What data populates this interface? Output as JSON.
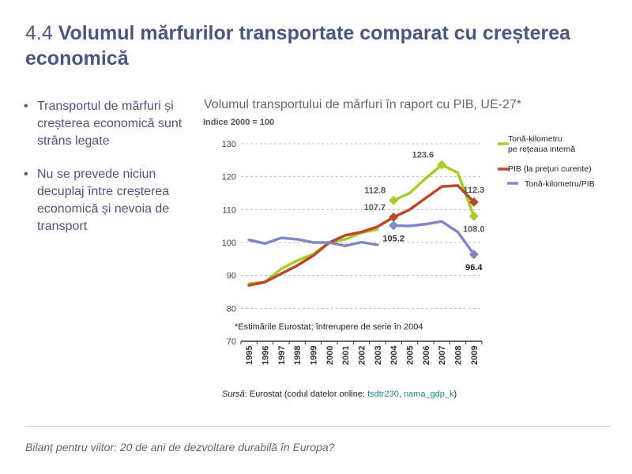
{
  "title": {
    "number": "4.4",
    "text": "Volumul mărfurilor transportate comparat cu creșterea economică"
  },
  "bullets": [
    "Transportul de mărfuri și creșterea economică sunt strâns legate",
    "Nu se prevede niciun decuplaj între creșterea economică și nevoia de transport"
  ],
  "source": {
    "label": "Sursă",
    "pre": ": Eurostat (codul datelor online: ",
    "code1": "tsdtr230",
    "sep": ", ",
    "code2": "nama_gdp_k",
    "post": ")"
  },
  "footer": "Bilanț pentru viitor: 20 de ani de dezvoltare durabilă în Europa?",
  "colors": {
    "green": "#a8cc2c",
    "red": "#b84a2c",
    "blue": "#8088c4",
    "grid": "#bbbbbb",
    "title": "#4a5580"
  },
  "chart_data": {
    "type": "line",
    "title": "Volumul transportului de mărfuri în raport cu PIB, UE-27*",
    "ylabel": "Indice 2000 = 100",
    "xlabel": "",
    "ylim": [
      70,
      130
    ],
    "yticks": [
      70,
      80,
      90,
      100,
      110,
      120,
      130
    ],
    "grid": true,
    "legend_position": "top-right",
    "x": [
      "1995",
      "1996",
      "1997",
      "1998",
      "1999",
      "2000",
      "2001",
      "2002",
      "2003",
      "2004",
      "2005",
      "2006",
      "2007",
      "2008",
      "2009"
    ],
    "series": [
      {
        "name": "Tonă-kilometru pe rețeaua internă",
        "legend_lines": [
          "Tonă-kilometru",
          "pe rețeaua internă"
        ],
        "color": "#a8cc2c",
        "values": [
          87.5,
          88.0,
          92.0,
          94.5,
          96.5,
          100.0,
          101.0,
          103.0,
          104.0,
          null,
          null,
          null,
          null,
          null,
          null
        ],
        "segment2": [
          null,
          null,
          null,
          null,
          null,
          null,
          null,
          null,
          null,
          112.8,
          115.0,
          119.5,
          123.6,
          121.2,
          108.0
        ]
      },
      {
        "name": "PIB (la prețuri curente)",
        "legend_lines": [
          "PIB (la prețuri curente)"
        ],
        "color": "#b84a2c",
        "values": [
          87.0,
          88.0,
          90.5,
          93.0,
          96.0,
          100.0,
          102.2,
          103.2,
          104.8,
          107.7,
          110.0,
          113.5,
          117.0,
          117.3,
          112.3
        ]
      },
      {
        "name": "Tonă-kilometru/PIB",
        "legend_lines": [
          "Tonă-kilometru/PIB"
        ],
        "color": "#8088c4",
        "values": [
          100.8,
          99.7,
          101.4,
          101.0,
          100.0,
          100.0,
          99.0,
          100.1,
          99.3,
          null,
          null,
          null,
          null,
          null,
          null
        ],
        "segment2": [
          null,
          null,
          null,
          null,
          null,
          null,
          null,
          null,
          null,
          105.2,
          105.0,
          105.6,
          106.4,
          103.2,
          96.4
        ]
      }
    ],
    "markers": [
      {
        "series": 0,
        "x": "2004",
        "value": 112.8
      },
      {
        "series": 0,
        "x": "2007",
        "value": 123.6
      },
      {
        "series": 0,
        "x": "2009",
        "value": 108.0
      },
      {
        "series": 1,
        "x": "2004",
        "value": 107.7
      },
      {
        "series": 1,
        "x": "2009",
        "value": 112.3
      },
      {
        "series": 2,
        "x": "2004",
        "value": 105.2
      },
      {
        "series": 2,
        "x": "2009",
        "value": 96.4
      }
    ],
    "data_labels": [
      {
        "text": "112.8",
        "x": "2004",
        "value": 112.8,
        "pos": "upper-left",
        "color": "#555555"
      },
      {
        "text": "123.6",
        "x": "2007",
        "value": 123.6,
        "pos": "upper-left",
        "color": "#555555"
      },
      {
        "text": "108.0",
        "x": "2009",
        "value": 108.0,
        "pos": "below",
        "color": "#555555"
      },
      {
        "text": "107.7",
        "x": "2004",
        "value": 107.7,
        "pos": "upper-left",
        "color": "#555555"
      },
      {
        "text": "112.3",
        "x": "2009",
        "value": 112.3,
        "pos": "above",
        "color": "#555555"
      },
      {
        "text": "105.2",
        "x": "2004",
        "value": 105.2,
        "pos": "below",
        "color": "#333333"
      },
      {
        "text": "96.4",
        "x": "2009",
        "value": 96.4,
        "pos": "below",
        "color": "#222222"
      }
    ],
    "annotation": "*Estimările Eurostat; întrerupere de serie în 2004"
  }
}
